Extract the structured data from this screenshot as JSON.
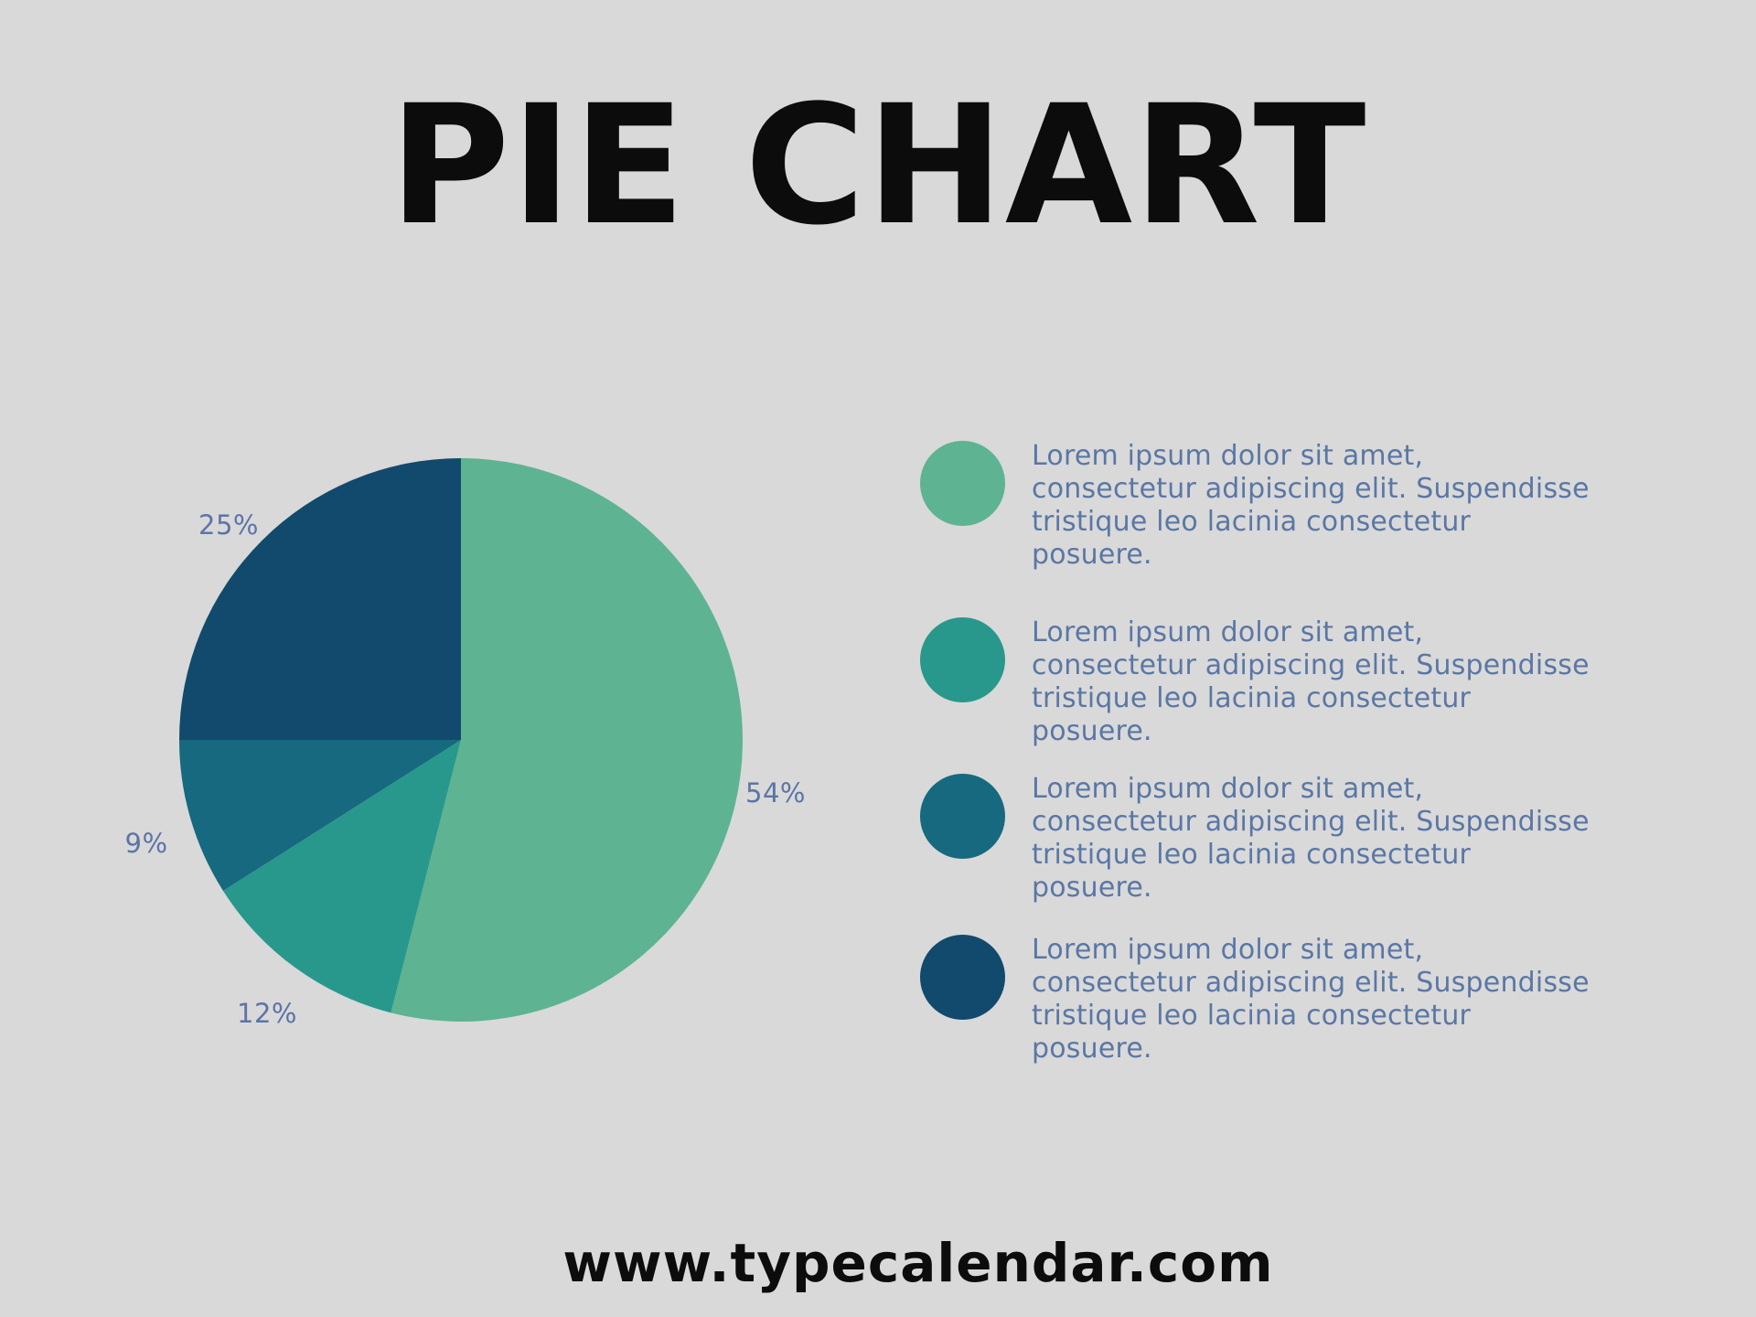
{
  "page": {
    "title": "PIE CHART",
    "footer_url": "www.typecalendar.com",
    "background_color": "#D9D9D9",
    "title_color": "#0C0C0C",
    "label_text_color": "#5C74A6"
  },
  "chart_data": {
    "type": "pie",
    "title": "PIE CHART",
    "start_angle_deg": 0,
    "direction": "clockwise",
    "legend_position": "right",
    "slices": [
      {
        "label": "54%",
        "value": 54,
        "color": "#5EB392"
      },
      {
        "label": "12%",
        "value": 12,
        "color": "#28988C"
      },
      {
        "label": "9%",
        "value": 9,
        "color": "#16697E"
      },
      {
        "label": "25%",
        "value": 25,
        "color": "#114A6C"
      }
    ]
  },
  "legend": {
    "items": [
      {
        "color": "#5EB392",
        "lines": [
          "Lorem ipsum dolor sit amet,",
          "consectetur adipiscing elit. Suspendisse",
          "tristique leo lacinia consectetur",
          "posuere."
        ]
      },
      {
        "color": "#28988C",
        "lines": [
          "Lorem ipsum dolor sit amet,",
          "consectetur adipiscing elit. Suspendisse",
          "tristique leo lacinia consectetur",
          "posuere."
        ]
      },
      {
        "color": "#16697E",
        "lines": [
          "Lorem ipsum dolor sit amet,",
          "consectetur adipiscing elit. Suspendisse",
          "tristique leo lacinia consectetur",
          "posuere."
        ]
      },
      {
        "color": "#114A6C",
        "lines": [
          "Lorem ipsum dolor sit amet,",
          "consectetur adipiscing elit. Suspendisse",
          "tristique leo lacinia consectetur",
          "posuere."
        ]
      }
    ]
  }
}
